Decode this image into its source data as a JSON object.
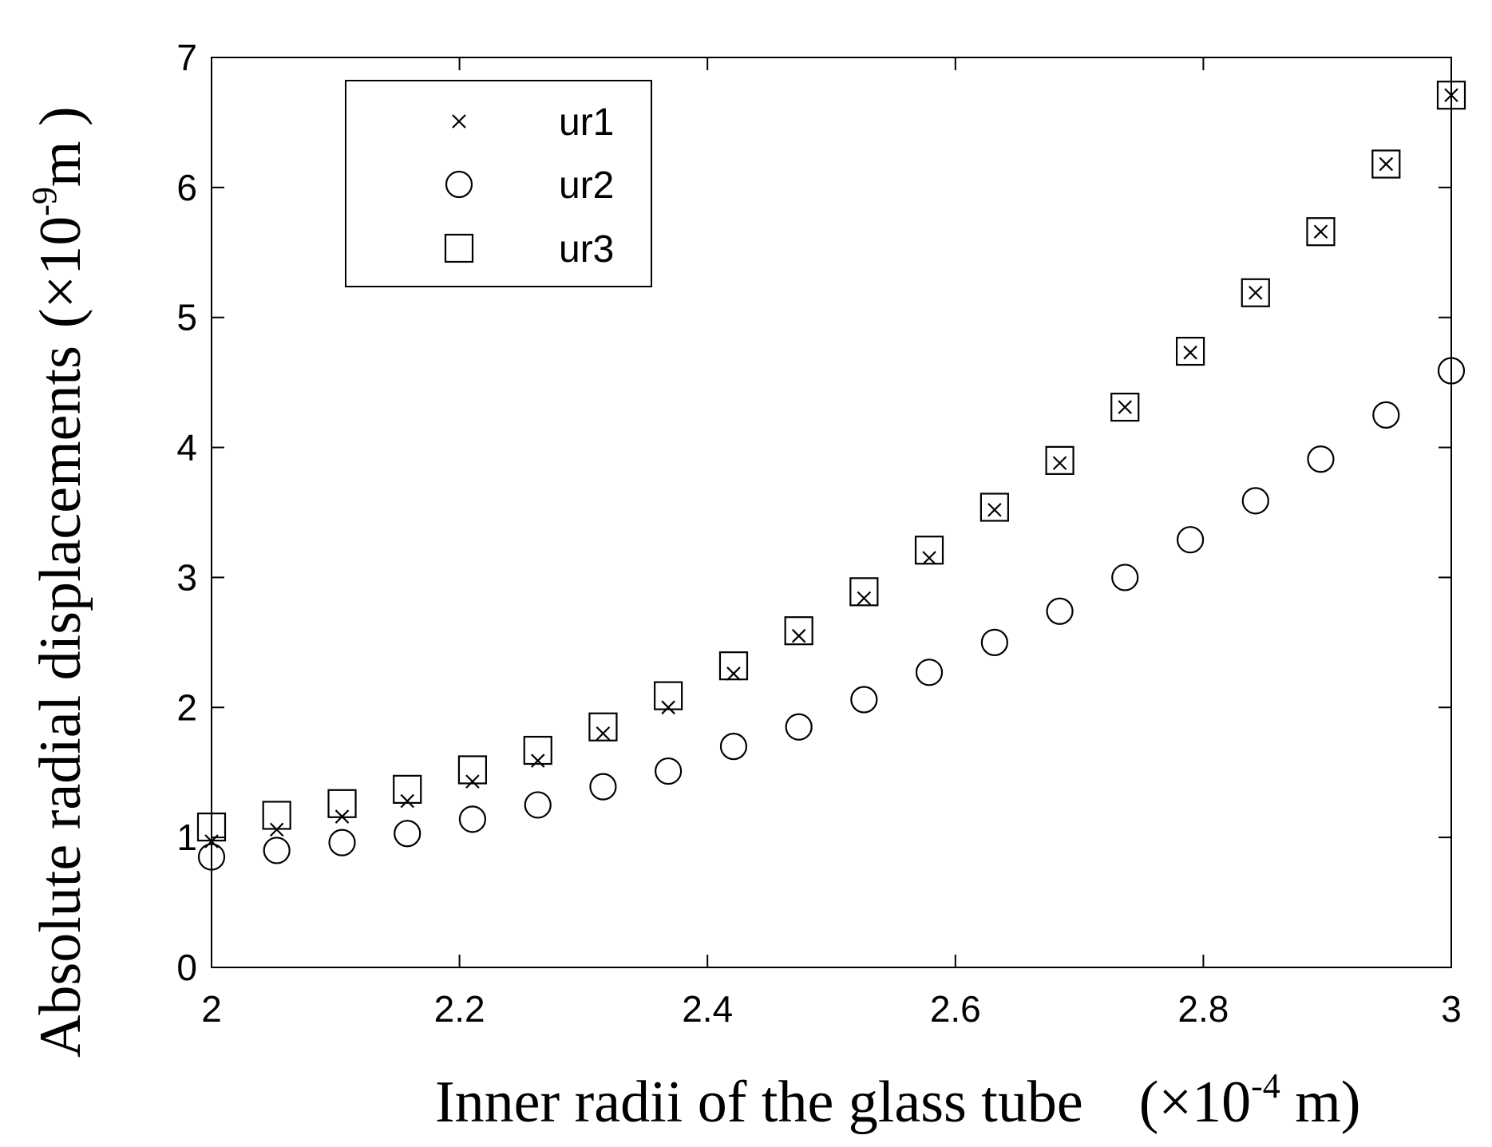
{
  "chart_data": {
    "type": "scatter",
    "xlabel": {
      "main": "Inner radii of the glass tube",
      "unit_open": "(×10",
      "unit_exp": "-4",
      "unit_close": " m)"
    },
    "ylabel": {
      "main": "Absolute radial displacements",
      "unit_open": "(×10",
      "unit_exp": "-9",
      "unit_close": "m )"
    },
    "xlim": [
      2,
      3
    ],
    "ylim": [
      0,
      7
    ],
    "x_ticks": [
      "2",
      "2.2",
      "2.4",
      "2.6",
      "2.8",
      "3"
    ],
    "y_ticks": [
      "0",
      "1",
      "2",
      "3",
      "4",
      "5",
      "6",
      "7"
    ],
    "grid": false,
    "legend_position": "top-left",
    "x": [
      2.0,
      2.0526,
      2.1053,
      2.1579,
      2.2105,
      2.2632,
      2.3158,
      2.3684,
      2.4211,
      2.4737,
      2.5263,
      2.5789,
      2.6316,
      2.6842,
      2.7368,
      2.7895,
      2.8421,
      2.8947,
      2.9474,
      3.0
    ],
    "series": [
      {
        "name": "ur1",
        "marker": "x",
        "values": [
          0.97,
          1.06,
          1.16,
          1.28,
          1.43,
          1.59,
          1.8,
          2.0,
          2.26,
          2.55,
          2.84,
          3.15,
          3.52,
          3.88,
          4.31,
          4.73,
          5.19,
          5.66,
          6.18,
          6.71
        ]
      },
      {
        "name": "ur2",
        "marker": "circle",
        "values": [
          0.85,
          0.9,
          0.96,
          1.03,
          1.14,
          1.25,
          1.39,
          1.51,
          1.7,
          1.85,
          2.06,
          2.27,
          2.5,
          2.74,
          3.0,
          3.29,
          3.59,
          3.91,
          4.25,
          4.59
        ]
      },
      {
        "name": "ur3",
        "marker": "square",
        "values": [
          1.08,
          1.17,
          1.26,
          1.37,
          1.52,
          1.67,
          1.85,
          2.09,
          2.32,
          2.59,
          2.89,
          3.21,
          3.54,
          3.9,
          4.31,
          4.74,
          5.19,
          5.66,
          6.18,
          6.71
        ]
      }
    ]
  }
}
